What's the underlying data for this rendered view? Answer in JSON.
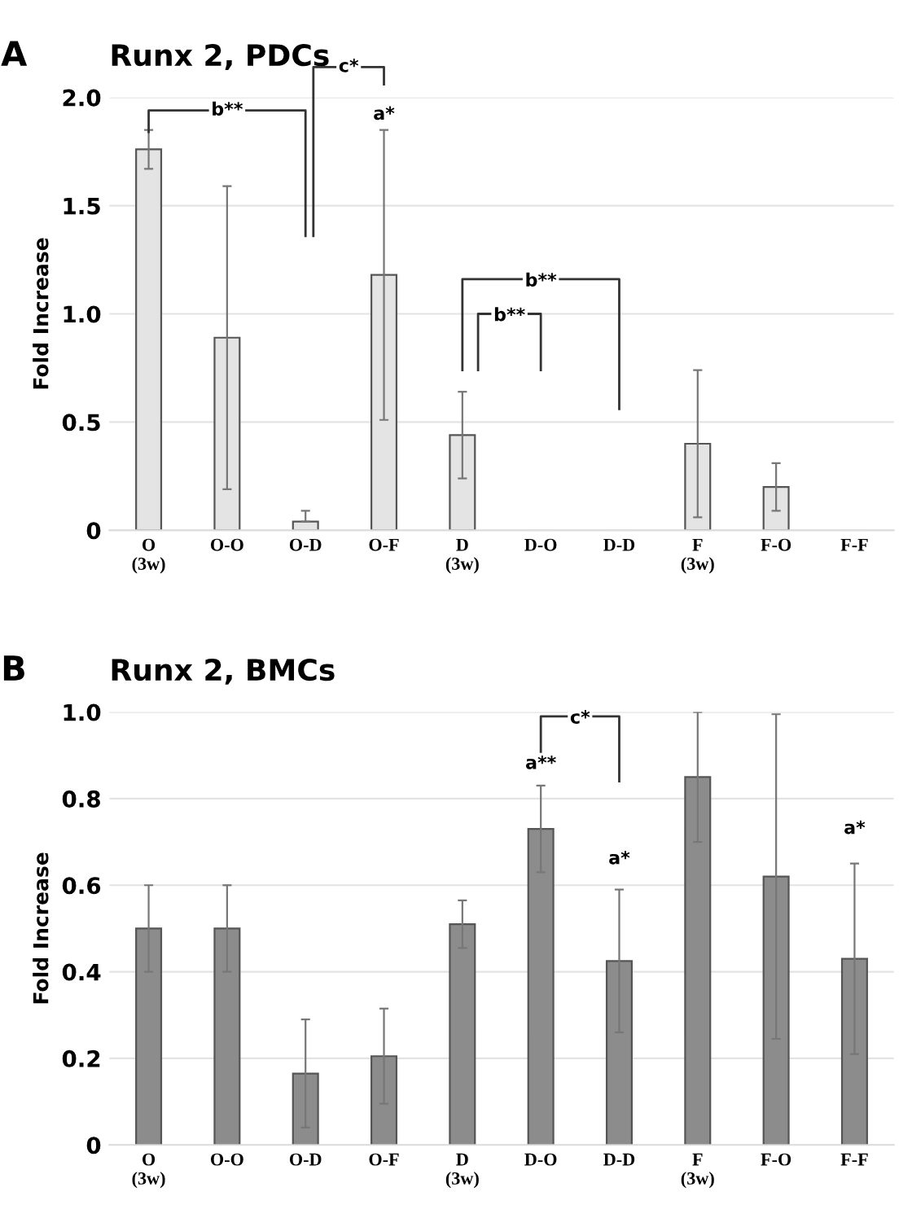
{
  "chart_data": [
    {
      "type": "bar",
      "title": "Runx 2, PDCs",
      "ylabel": "Fold Increase",
      "categories": [
        "O\n(3w)",
        "O-O",
        "O-D",
        "O-F",
        "D\n(3w)",
        "D-O",
        "D-D",
        "F\n(3w)",
        "F-O",
        "F-F"
      ],
      "values": [
        1.76,
        0.89,
        0.04,
        1.18,
        0.44,
        0,
        0,
        0.4,
        0.2,
        0
      ],
      "errors": [
        0.09,
        0.7,
        [
          0.04,
          0.09
        ],
        0.67,
        0.2,
        null,
        null,
        0.34,
        0.11,
        null
      ],
      "color": "#e4e4e4",
      "ylim": [
        0,
        2.0
      ],
      "yticks": [
        {
          "value": 0,
          "label": "0"
        },
        0.5,
        {
          "value": 1,
          "label": "1.0"
        },
        1.5,
        {
          "value": 2,
          "label": "2.0"
        }
      ],
      "grid": "y",
      "annotations": [
        "A",
        "b**",
        "c*",
        "a*",
        "b**",
        "b**"
      ]
    },
    {
      "type": "bar",
      "title": "Runx 2, BMCs",
      "ylabel": "Fold Increase",
      "categories": [
        "O\n(3w)",
        "O-O",
        "O-D",
        "O-F",
        "D\n(3w)",
        "D-O",
        "D-D",
        "F\n(3w)",
        "F-O",
        "F-F"
      ],
      "values": [
        0.5,
        0.5,
        0.165,
        0.205,
        0.51,
        0.73,
        0.425,
        0.85,
        0.62,
        0.43
      ],
      "errors": [
        0.1,
        0.1,
        0.125,
        0.11,
        0.055,
        0.1,
        0.165,
        0.15,
        0.375,
        0.22
      ],
      "color": "#8c8c8c",
      "ylim": [
        0,
        1.0
      ],
      "yticks": [
        {
          "value": 0,
          "label": "0"
        },
        0.2,
        0.4,
        0.6,
        0.8,
        {
          "value": 1,
          "label": "1.0"
        }
      ],
      "grid": "y",
      "annotations": [
        "B",
        "c*",
        "a**",
        "a*",
        "a*"
      ]
    }
  ]
}
